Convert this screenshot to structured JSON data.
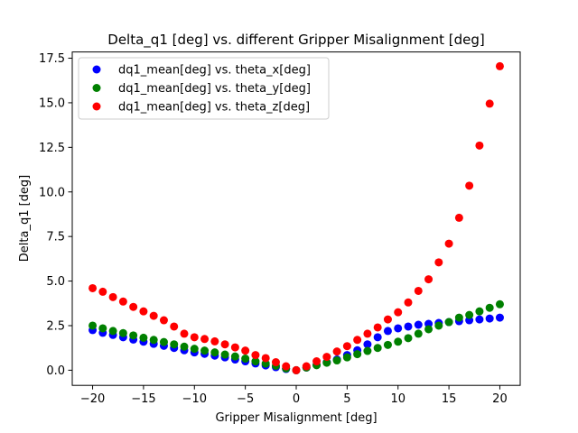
{
  "chart_data": {
    "type": "scatter",
    "title": "Delta_q1 [deg] vs. different Gripper Misalignment [deg]",
    "xlabel": "Gripper Misalignment [deg]",
    "ylabel": "Delta_q1 [deg]",
    "xlim": [
      -22,
      22
    ],
    "ylim": [
      -0.85,
      17.85
    ],
    "xticks": [
      -20,
      -15,
      -10,
      -5,
      0,
      5,
      10,
      15,
      20
    ],
    "xtick_labels": [
      "−20",
      "−15",
      "−10",
      "−5",
      "0",
      "5",
      "10",
      "15",
      "20"
    ],
    "yticks": [
      0,
      2.5,
      5,
      7.5,
      10,
      12.5,
      15,
      17.5
    ],
    "ytick_labels": [
      "0.0",
      "2.5",
      "5.0",
      "7.5",
      "10.0",
      "12.5",
      "15.0",
      "17.5"
    ],
    "grid": false,
    "legend_position": "top-left",
    "x": [
      -20,
      -19,
      -18,
      -17,
      -16,
      -15,
      -14,
      -13,
      -12,
      -11,
      -10,
      -9,
      -8,
      -7,
      -6,
      -5,
      -4,
      -3,
      -2,
      -1,
      0,
      1,
      2,
      3,
      4,
      5,
      6,
      7,
      8,
      9,
      10,
      11,
      12,
      13,
      14,
      15,
      16,
      17,
      18,
      19,
      20
    ],
    "series": [
      {
        "name": "dq1_mean[deg] vs. theta_x[deg]",
        "color": "#0000ff",
        "values": [
          2.25,
          2.1,
          1.98,
          1.85,
          1.72,
          1.6,
          1.48,
          1.37,
          1.25,
          1.12,
          1.0,
          0.92,
          0.82,
          0.72,
          0.6,
          0.5,
          0.38,
          0.27,
          0.17,
          0.07,
          0.0,
          0.15,
          0.3,
          0.45,
          0.6,
          0.85,
          1.12,
          1.45,
          1.85,
          2.2,
          2.35,
          2.45,
          2.55,
          2.6,
          2.65,
          2.7,
          2.75,
          2.8,
          2.85,
          2.9,
          2.95
        ]
      },
      {
        "name": "dq1_mean[deg] vs. theta_y[deg]",
        "color": "#008000",
        "values": [
          2.5,
          2.35,
          2.2,
          2.08,
          1.95,
          1.82,
          1.7,
          1.58,
          1.45,
          1.32,
          1.2,
          1.1,
          1.0,
          0.88,
          0.77,
          0.65,
          0.5,
          0.37,
          0.25,
          0.1,
          0.0,
          0.15,
          0.28,
          0.42,
          0.55,
          0.72,
          0.9,
          1.08,
          1.25,
          1.42,
          1.6,
          1.8,
          2.05,
          2.3,
          2.5,
          2.7,
          2.95,
          3.1,
          3.3,
          3.5,
          3.7
        ]
      },
      {
        "name": "dq1_mean[deg] vs. theta_z[deg]",
        "color": "#ff0000",
        "values": [
          4.6,
          4.4,
          4.1,
          3.85,
          3.55,
          3.3,
          3.05,
          2.8,
          2.45,
          2.05,
          1.85,
          1.75,
          1.62,
          1.45,
          1.28,
          1.1,
          0.85,
          0.68,
          0.45,
          0.22,
          0.0,
          0.22,
          0.5,
          0.75,
          1.05,
          1.35,
          1.7,
          2.05,
          2.4,
          2.85,
          3.25,
          3.8,
          4.45,
          5.1,
          6.05,
          7.1,
          8.55,
          10.35,
          12.6,
          14.95,
          17.05
        ]
      }
    ]
  }
}
